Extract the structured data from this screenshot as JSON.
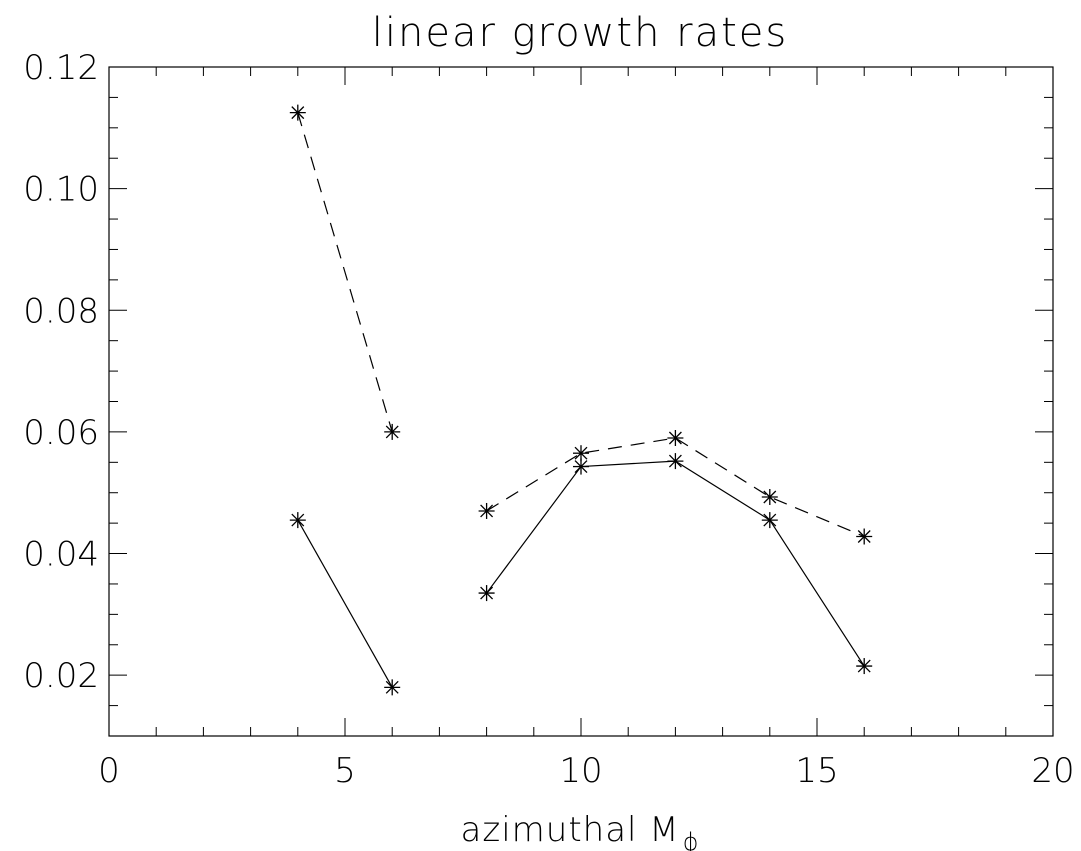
{
  "chart_data": {
    "type": "line",
    "title": "linear growth rates",
    "xlabel": "azimuthal M",
    "xlabel_subscript": "ϕ",
    "ylabel": "",
    "xlim": [
      0,
      20
    ],
    "ylim": [
      0.01,
      0.12
    ],
    "x_ticks": [
      0,
      5,
      10,
      15,
      20
    ],
    "x_tick_labels": [
      "0",
      "5",
      "10",
      "15",
      "20"
    ],
    "x_minor_step": 1,
    "y_ticks": [
      0.02,
      0.04,
      0.06,
      0.08,
      0.1,
      0.12
    ],
    "y_tick_labels": [
      "0.02",
      "0.04",
      "0.06",
      "0.08",
      "0.10",
      "0.12"
    ],
    "y_minor_step": 0.005,
    "grid": false,
    "series": [
      {
        "style": "dashed",
        "marker": "asterisk",
        "segments": [
          [
            [
              4,
              0.1125
            ],
            [
              6,
              0.06
            ]
          ],
          [
            [
              8,
              0.047
            ],
            [
              10,
              0.0565
            ],
            [
              12,
              0.059
            ],
            [
              14,
              0.0493
            ],
            [
              16,
              0.0428
            ]
          ]
        ]
      },
      {
        "style": "solid",
        "marker": "asterisk",
        "segments": [
          [
            [
              4,
              0.0455
            ],
            [
              6,
              0.018
            ]
          ],
          [
            [
              8,
              0.0335
            ],
            [
              10,
              0.0543
            ],
            [
              12,
              0.0552
            ],
            [
              14,
              0.0455
            ],
            [
              16,
              0.0215
            ]
          ]
        ]
      }
    ]
  }
}
